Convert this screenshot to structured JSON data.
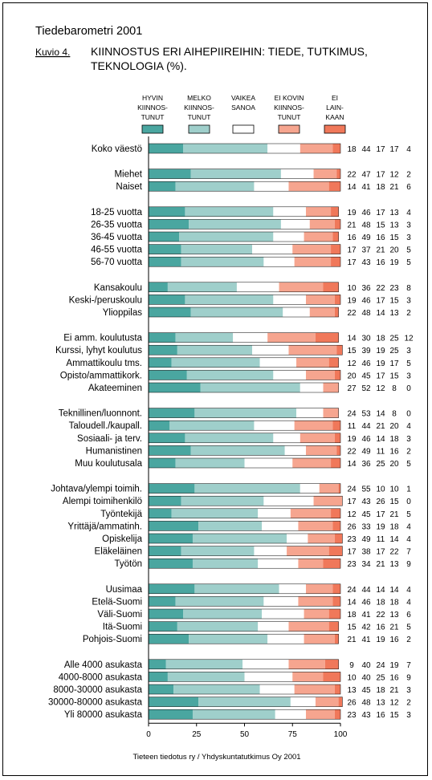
{
  "header": {
    "title": "Tiedebarometri 2001",
    "figure_label": "Kuvio 4.",
    "subtitle_lines": [
      "KIINNOSTUS ERI AIHEPIIREIHIN: TIEDE, TUTKIMUS,",
      "TEKNOLOGIA (%)."
    ]
  },
  "legend": [
    {
      "key": "hyvin",
      "lines": [
        "HYVIN",
        "KIINNOS-",
        "TUNUT"
      ],
      "color": "#4aa6a0"
    },
    {
      "key": "melko",
      "lines": [
        "MELKO",
        "KIINNOS-",
        "TUNUT"
      ],
      "color": "#9fcfcb"
    },
    {
      "key": "vaikea",
      "lines": [
        "VAIKEA",
        "SANOA"
      ],
      "color": "#ffffff"
    },
    {
      "key": "eikovin",
      "lines": [
        "EI KOVIN",
        "KIINNOS-",
        "TUNUT"
      ],
      "color": "#f6a58f"
    },
    {
      "key": "ei",
      "lines": [
        "EI",
        "LAIN-",
        "KAAN"
      ],
      "color": "#f0785a"
    }
  ],
  "footer": {
    "source": "Tieteen tiedotus ry / Yhdyskuntatutkimus Oy 2001"
  },
  "chart_data": {
    "type": "bar",
    "orientation": "horizontal",
    "stacked": true,
    "xlim": [
      0,
      100
    ],
    "xticks": [
      "0",
      "25",
      "50",
      "75",
      "100"
    ],
    "series": [
      {
        "name": "HYVIN KIINNOSTUNUT",
        "color": "#4aa6a0"
      },
      {
        "name": "MELKO KIINNOSTUNUT",
        "color": "#9fcfcb"
      },
      {
        "name": "VAIKEA SANOA",
        "color": "#ffffff"
      },
      {
        "name": "EI KOVIN KIINNOSTUNUT",
        "color": "#f6a58f"
      },
      {
        "name": "EI LAINKAAN",
        "color": "#f0785a"
      }
    ],
    "groups": [
      {
        "rows": [
          {
            "label": "Koko väestö",
            "values": [
              18,
              44,
              17,
              17,
              4
            ]
          }
        ]
      },
      {
        "rows": [
          {
            "label": "Miehet",
            "values": [
              22,
              47,
              17,
              12,
              2
            ]
          },
          {
            "label": "Naiset",
            "values": [
              14,
              41,
              18,
              21,
              6
            ]
          }
        ]
      },
      {
        "rows": [
          {
            "label": "18-25 vuotta",
            "values": [
              19,
              46,
              17,
              13,
              4
            ]
          },
          {
            "label": "26-35 vuotta",
            "values": [
              21,
              48,
              15,
              13,
              3
            ]
          },
          {
            "label": "36-45 vuotta",
            "values": [
              16,
              49,
              16,
              15,
              3
            ]
          },
          {
            "label": "46-55 vuotta",
            "values": [
              17,
              37,
              21,
              20,
              5
            ]
          },
          {
            "label": "56-70 vuotta",
            "values": [
              17,
              43,
              16,
              19,
              5
            ]
          }
        ]
      },
      {
        "rows": [
          {
            "label": "Kansakoulu",
            "values": [
              10,
              36,
              22,
              23,
              8
            ]
          },
          {
            "label": "Keski-/peruskoulu",
            "values": [
              19,
              46,
              17,
              15,
              3
            ]
          },
          {
            "label": "Ylioppilas",
            "values": [
              22,
              48,
              14,
              13,
              2
            ]
          }
        ]
      },
      {
        "rows": [
          {
            "label": "Ei amm. koulutusta",
            "values": [
              14,
              30,
              18,
              25,
              12
            ]
          },
          {
            "label": "Kurssi, lyhyt koulutus",
            "values": [
              15,
              39,
              19,
              25,
              3
            ]
          },
          {
            "label": "Ammattikoulu tms.",
            "values": [
              12,
              46,
              19,
              17,
              5
            ]
          },
          {
            "label": "Opisto/ammattikork.",
            "values": [
              20,
              45,
              17,
              15,
              3
            ]
          },
          {
            "label": "Akateeminen",
            "values": [
              27,
              52,
              12,
              8,
              0
            ]
          }
        ]
      },
      {
        "rows": [
          {
            "label": "Teknillinen/luonnont.",
            "values": [
              24,
              53,
              14,
              8,
              0
            ]
          },
          {
            "label": "Taloudell./kaupall.",
            "values": [
              11,
              44,
              21,
              20,
              4
            ]
          },
          {
            "label": "Sosiaali- ja terv.",
            "values": [
              19,
              46,
              14,
              18,
              3
            ]
          },
          {
            "label": "Humanistinen",
            "values": [
              22,
              49,
              11,
              16,
              2
            ]
          },
          {
            "label": "Muu koulutusala",
            "values": [
              14,
              36,
              25,
              20,
              5
            ]
          }
        ]
      },
      {
        "rows": [
          {
            "label": "Johtava/ylempi toimih.",
            "values": [
              24,
              55,
              10,
              10,
              1
            ]
          },
          {
            "label": "Alempi toimihenkilö",
            "values": [
              17,
              43,
              26,
              15,
              0
            ]
          },
          {
            "label": "Työntekijä",
            "values": [
              12,
              45,
              17,
              21,
              5
            ]
          },
          {
            "label": "Yrittäjä/ammatinh.",
            "values": [
              26,
              33,
              19,
              18,
              4
            ]
          },
          {
            "label": "Opiskelija",
            "values": [
              23,
              49,
              11,
              14,
              4
            ]
          },
          {
            "label": "Eläkeläinen",
            "values": [
              17,
              38,
              17,
              22,
              7
            ]
          },
          {
            "label": "Työtön",
            "values": [
              23,
              34,
              21,
              13,
              9
            ]
          }
        ]
      },
      {
        "rows": [
          {
            "label": "Uusimaa",
            "values": [
              24,
              44,
              14,
              14,
              4
            ]
          },
          {
            "label": "Etelä-Suomi",
            "values": [
              14,
              46,
              18,
              18,
              4
            ]
          },
          {
            "label": "Väli-Suomi",
            "values": [
              18,
              41,
              22,
              13,
              6
            ]
          },
          {
            "label": "Itä-Suomi",
            "values": [
              15,
              42,
              16,
              21,
              5
            ]
          },
          {
            "label": "Pohjois-Suomi",
            "values": [
              21,
              41,
              19,
              16,
              2
            ]
          }
        ]
      },
      {
        "rows": [
          {
            "label": "Alle 4000 asukasta",
            "values": [
              9,
              40,
              24,
              19,
              7
            ]
          },
          {
            "label": "4000-8000 asukasta",
            "values": [
              10,
              40,
              25,
              16,
              9
            ]
          },
          {
            "label": "8000-30000 asukasta",
            "values": [
              13,
              45,
              18,
              21,
              3
            ]
          },
          {
            "label": "30000-80000 asukasta",
            "values": [
              26,
              48,
              13,
              12,
              2
            ]
          },
          {
            "label": "Yli 80000 asukasta",
            "values": [
              23,
              43,
              16,
              15,
              3
            ]
          }
        ]
      }
    ]
  }
}
